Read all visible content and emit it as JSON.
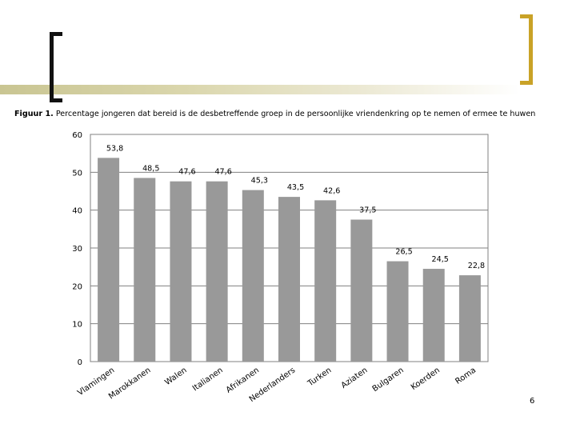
{
  "caption": {
    "label": "Figuur 1.",
    "text": "Percentage jongeren dat bereid is de desbetreffende groep in de persoonlijke vriendenkring op te nemen of ermee te huwen"
  },
  "page_number": "6",
  "colors": {
    "bar": "#999999",
    "plot_border": "#808080",
    "grid": "#808080",
    "bracket_left": "#111111",
    "bracket_right": "#c9a227",
    "band": "#d4d0a2"
  },
  "chart_data": {
    "type": "bar",
    "title": "",
    "xlabel": "",
    "ylabel": "",
    "ylim": [
      0,
      60
    ],
    "yticks": [
      0,
      10,
      20,
      30,
      40,
      50,
      60
    ],
    "grid": true,
    "categories": [
      "Vlamingen",
      "Marokkanen",
      "Walen",
      "Italianen",
      "Afrikanen",
      "Nederlanders",
      "Turken",
      "Aziaten",
      "Bulgaren",
      "Koerden",
      "Roma"
    ],
    "values": [
      53.8,
      48.5,
      47.6,
      47.6,
      45.3,
      43.5,
      42.6,
      37.5,
      26.5,
      24.5,
      22.8
    ],
    "value_labels": [
      "53,8",
      "48,5",
      "47,6",
      "47,6",
      "45,3",
      "43,5",
      "42,6",
      "37,5",
      "26,5",
      "24,5",
      "22,8"
    ]
  }
}
